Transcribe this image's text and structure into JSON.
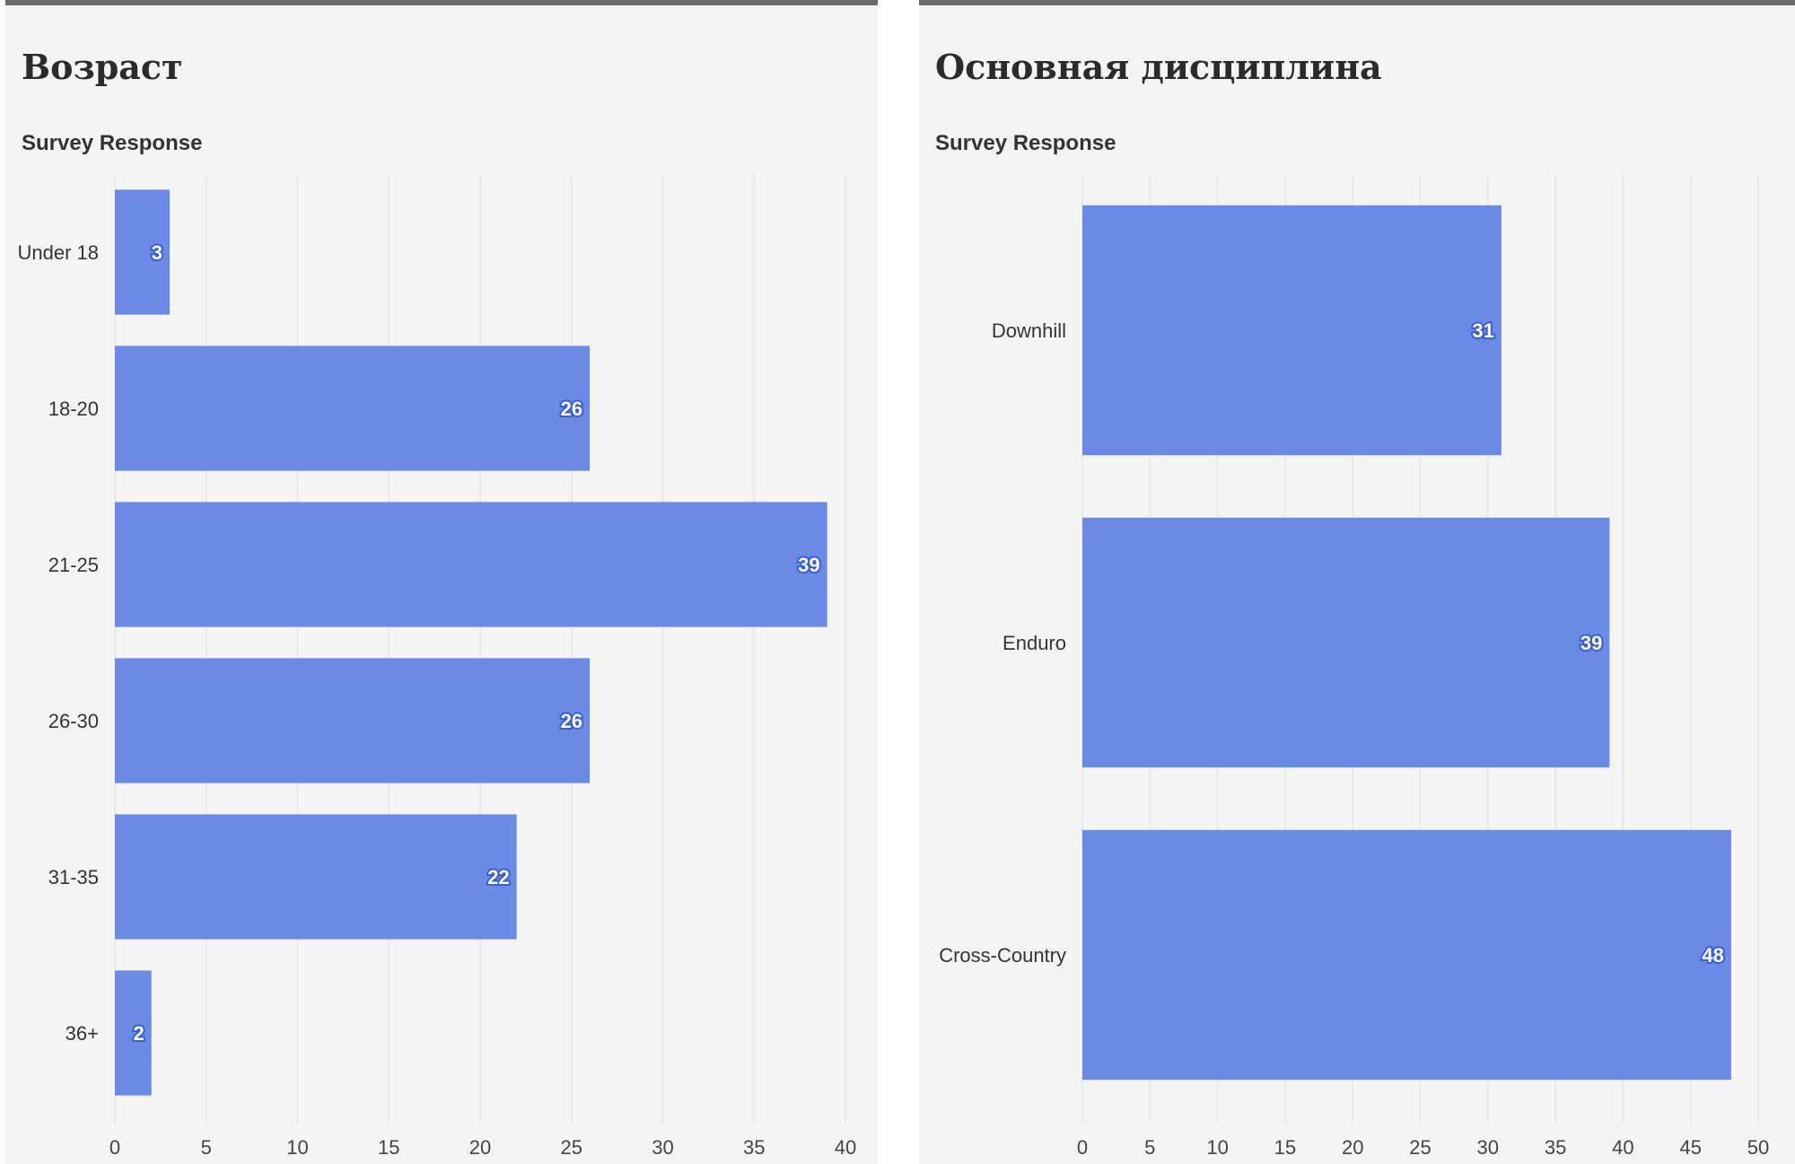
{
  "charts": [
    {
      "title": "Возраст",
      "subtitle": "Survey Response",
      "chart_data": {
        "type": "bar",
        "orientation": "horizontal",
        "categories": [
          "Under 18",
          "18-20",
          "21-25",
          "26-30",
          "31-35",
          "36+"
        ],
        "values": [
          3,
          26,
          39,
          26,
          22,
          2
        ],
        "xlim": [
          0,
          40
        ],
        "xticks": [
          0,
          5,
          10,
          15,
          20,
          25,
          30,
          35,
          40
        ],
        "grid": true,
        "bar_color": "#6a8ae3"
      }
    },
    {
      "title": "Основная дисциплина",
      "subtitle": "Survey Response",
      "chart_data": {
        "type": "bar",
        "orientation": "horizontal",
        "categories": [
          "Downhill",
          "Enduro",
          "Cross-Country"
        ],
        "values": [
          31,
          39,
          48
        ],
        "xlim": [
          0,
          50
        ],
        "xticks": [
          0,
          5,
          10,
          15,
          20,
          25,
          30,
          35,
          40,
          45,
          50
        ],
        "grid": true,
        "bar_color": "#6a8ae3"
      }
    }
  ]
}
